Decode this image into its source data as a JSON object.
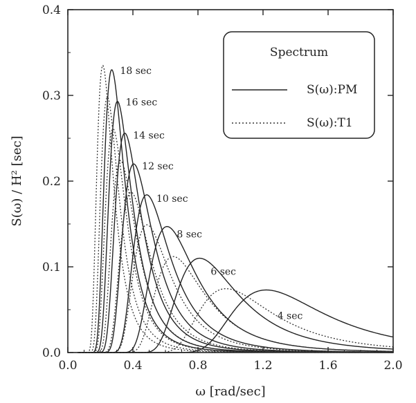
{
  "chart_data": {
    "type": "line",
    "xlabel": "ω [rad/sec]",
    "ylabel": "S(ω) / H² [sec]",
    "xlim": [
      0,
      2.0
    ],
    "ylim": [
      0,
      0.4
    ],
    "xticks": [
      "0.0",
      "0.4",
      "0.8",
      "1.2",
      "1.6",
      "2.0"
    ],
    "yticks": [
      "0.0",
      "0.1",
      "0.2",
      "0.3",
      "0.4"
    ],
    "xtick_values": [
      0,
      0.4,
      0.8,
      1.2,
      1.6,
      2.0
    ],
    "ytick_values": [
      0,
      0.1,
      0.2,
      0.3,
      0.4
    ],
    "grid": false,
    "legend": {
      "title": "Spectrum",
      "placement": "top-right",
      "entries": [
        {
          "label": "S(ω):PM",
          "style": "solid"
        },
        {
          "label": "S(ω):T1",
          "style": "dotted"
        }
      ]
    },
    "series": [
      {
        "name": "S(ω):PM",
        "style": "solid",
        "color": "#222222",
        "curves": [
          {
            "label": "18 sec",
            "peak": [
              0.27,
              0.33
            ]
          },
          {
            "label": "16 sec",
            "peak": [
              0.305,
              0.293
            ]
          },
          {
            "label": "14 sec",
            "peak": [
              0.35,
              0.256
            ]
          },
          {
            "label": "12 sec",
            "peak": [
              0.405,
              0.22
            ]
          },
          {
            "label": "10 sec",
            "peak": [
              0.485,
              0.184
            ]
          },
          {
            "label": "8 sec",
            "peak": [
              0.61,
              0.147
            ]
          },
          {
            "label": "6 sec",
            "peak": [
              0.81,
              0.11
            ]
          },
          {
            "label": "4 sec",
            "peak": [
              1.22,
              0.073
            ]
          }
        ]
      },
      {
        "name": "S(ω):T1",
        "style": "dotted",
        "color": "#333333",
        "curves": [
          {
            "label": "18 sec",
            "peak": [
              0.215,
              0.335
            ]
          },
          {
            "label": "16 sec",
            "peak": [
              0.243,
              0.298
            ]
          },
          {
            "label": "14 sec",
            "peak": [
              0.278,
              0.261
            ]
          },
          {
            "label": "12 sec",
            "peak": [
              0.324,
              0.224
            ]
          },
          {
            "label": "10 sec",
            "peak": [
              0.389,
              0.187
            ]
          },
          {
            "label": "8 sec",
            "peak": [
              0.486,
              0.149
            ]
          },
          {
            "label": "6 sec",
            "peak": [
              0.648,
              0.112
            ]
          },
          {
            "label": "4 sec",
            "peak": [
              0.972,
              0.0745
            ]
          }
        ]
      }
    ],
    "annotations": [
      "18 sec",
      "16 sec",
      "14 sec",
      "12 sec",
      "10 sec",
      "8 sec",
      "6 sec",
      "4 sec"
    ]
  }
}
